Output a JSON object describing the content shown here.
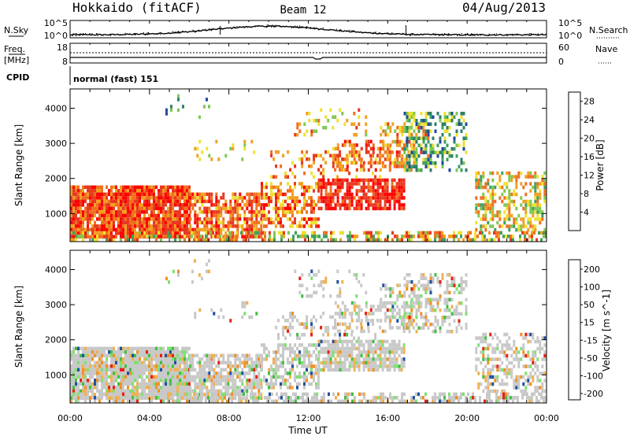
{
  "header": {
    "station": "Hokkaido (fitACF)",
    "beam": "Beam 12",
    "date": "04/Aug/2013"
  },
  "noise_panel": {
    "left_label": "N.Sky",
    "right_label": "N.Search",
    "tick_top": "10^5",
    "tick_bottom": "10^0"
  },
  "freq_panel": {
    "left_label_1": "Freq.",
    "left_label_2": "[MHz]",
    "right_label": "Nave",
    "left_tick_top": "18",
    "left_tick_bottom": "8",
    "right_tick_top": "60",
    "right_tick_bottom": "0"
  },
  "cpid": {
    "label": "CPID",
    "value": "normal (fast) 151"
  },
  "colors": {
    "power": [
      "#0000ff",
      "#1e4aa0",
      "#2f7f6a",
      "#3fa060",
      "#7ec850",
      "#f0e030",
      "#f0a020",
      "#f07020",
      "#e83820",
      "#ff0000"
    ],
    "velocity_scale": [
      "#1e2ad0",
      "#2050a0",
      "#2c7a40",
      "#40c040",
      "#7ee070",
      "#c8c8c8",
      "#f0b050",
      "#f09020",
      "#f06010",
      "#e82010",
      "#ff0000"
    ]
  },
  "chart_data": [
    {
      "type": "heatmap",
      "quantity": "power",
      "xlabel": "",
      "ylabel": "Slant Range [km]",
      "y_ticks": [
        1000,
        2000,
        3000,
        4000
      ],
      "ylim": [
        200,
        4550
      ],
      "colorbar": {
        "label": "Power [dB]",
        "ticks": [
          "4",
          "8",
          "12",
          "16",
          "20",
          "24",
          "28"
        ],
        "range": [
          0,
          30
        ]
      }
    },
    {
      "type": "heatmap",
      "quantity": "velocity",
      "xlabel": "Time UT",
      "ylabel": "Slant Range [km]",
      "x_ticks": [
        "00:00",
        "04:00",
        "08:00",
        "12:00",
        "16:00",
        "20:00",
        "00:00"
      ],
      "y_ticks": [
        1000,
        2000,
        3000,
        4000
      ],
      "ylim": [
        200,
        4550
      ],
      "colorbar": {
        "label": "Velocity [m s^-1]",
        "ticks": [
          "200",
          "100",
          "50",
          "15",
          "-15",
          "-50",
          "-100",
          "-200"
        ]
      }
    }
  ]
}
